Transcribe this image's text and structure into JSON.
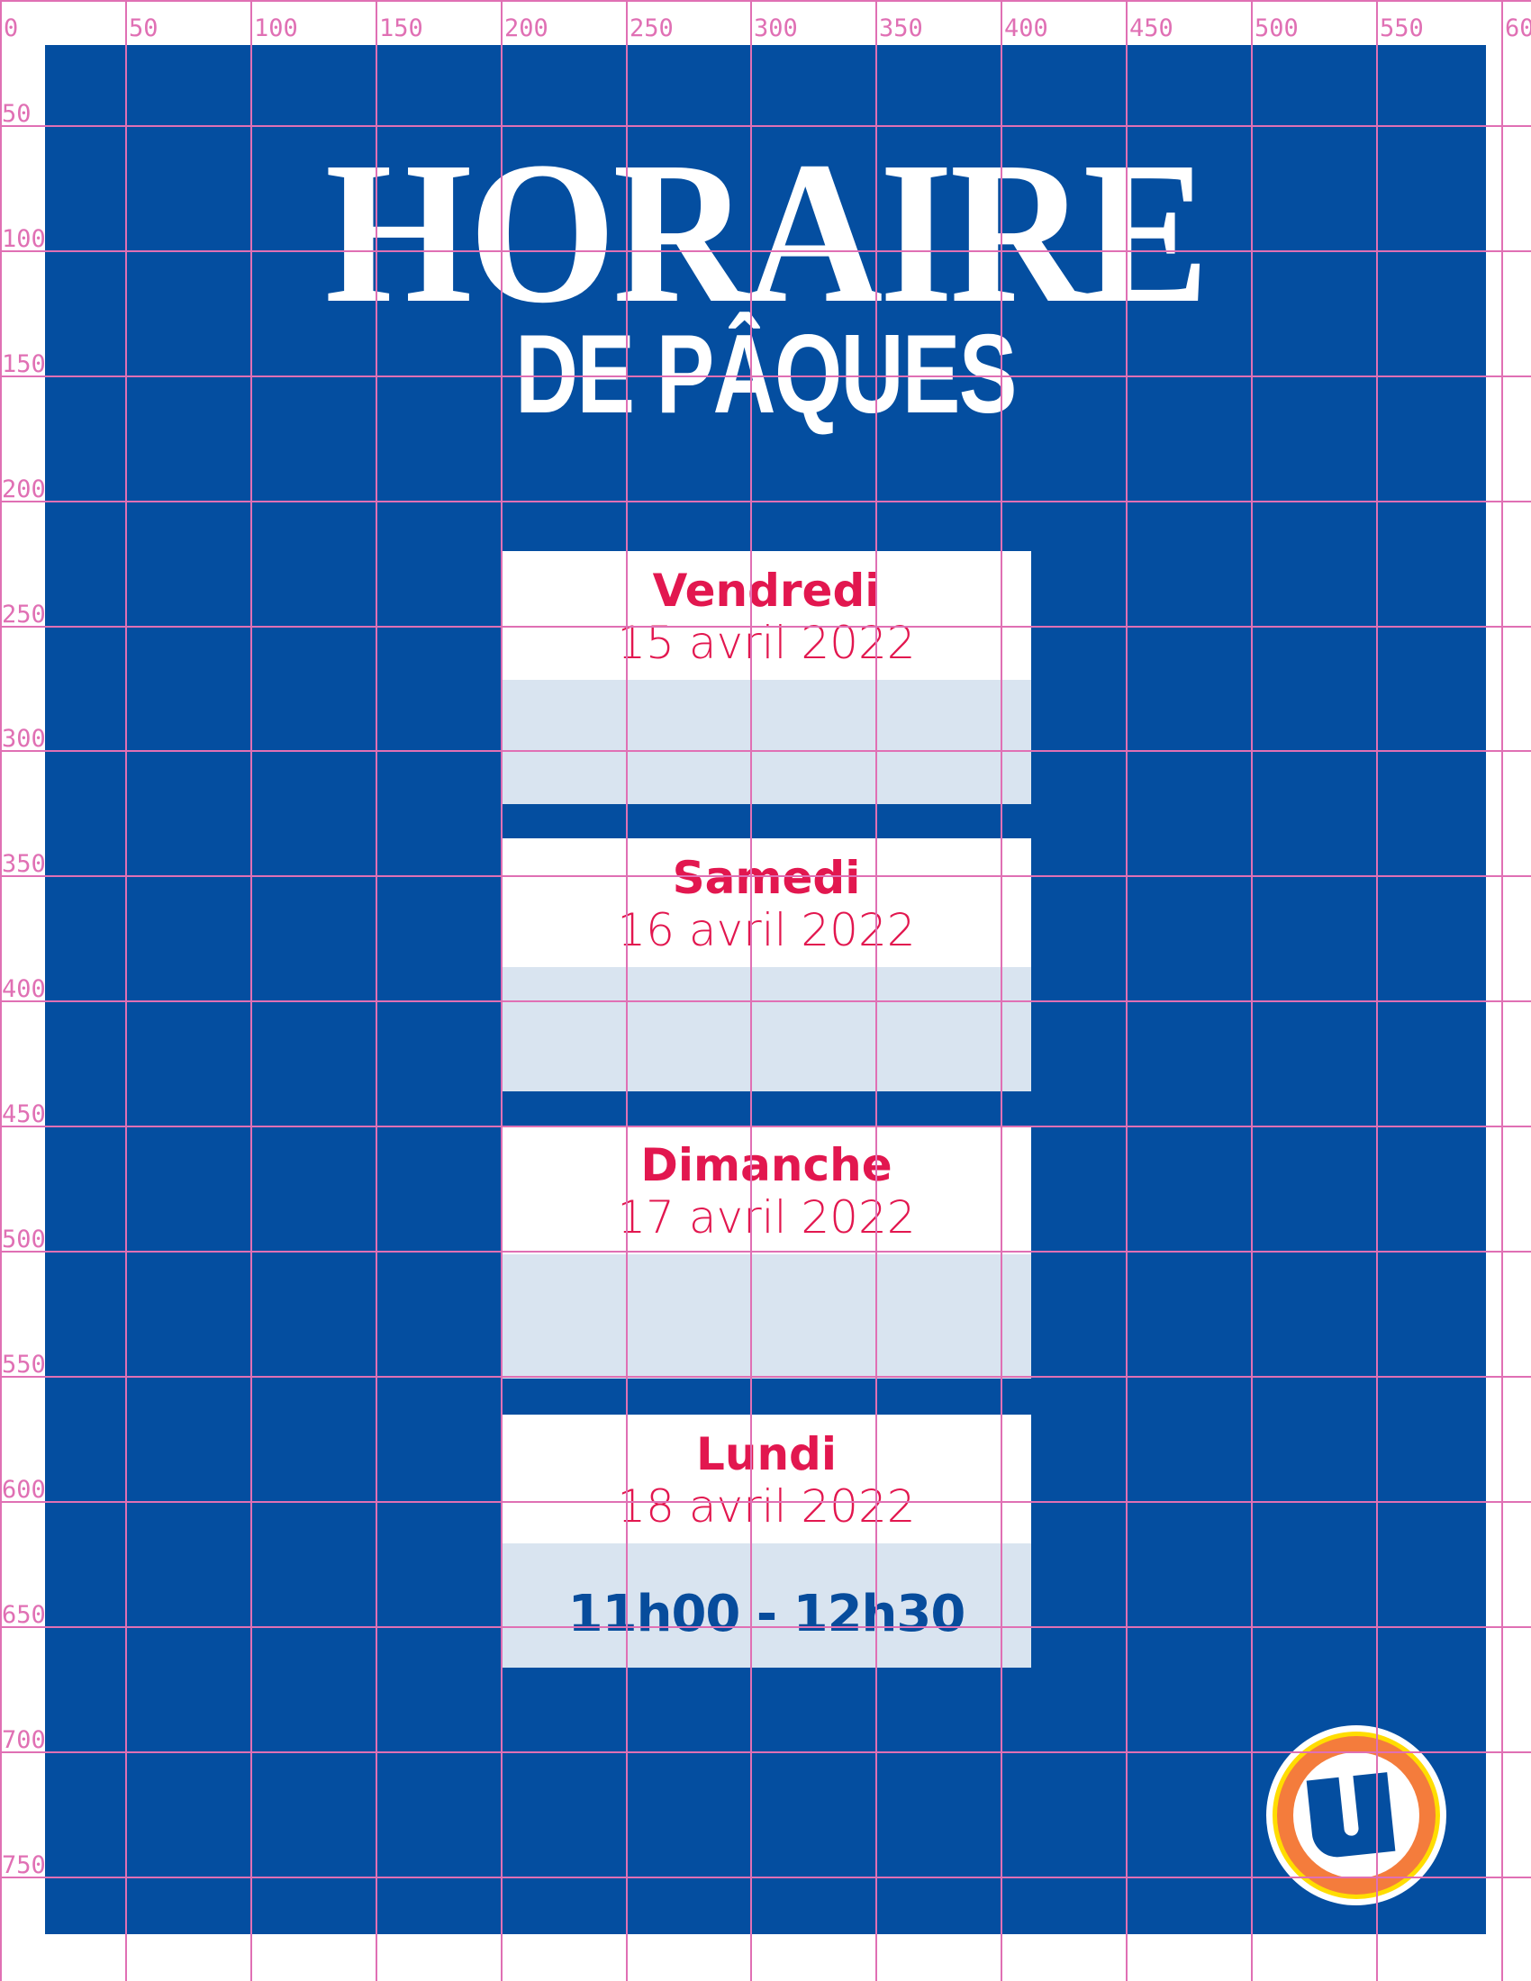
{
  "poster": {
    "title": "HORAIRE",
    "subtitle": "DE PÂQUES",
    "colors": {
      "background": "#044ea0",
      "accent": "#e2174f",
      "hours_box": "#d9e4f0",
      "grid": "#e070b4"
    }
  },
  "days": [
    {
      "day": "Vendredi",
      "date": "15 avril 2022",
      "hours": ""
    },
    {
      "day": "Samedi",
      "date": "16 avril 2022",
      "hours": ""
    },
    {
      "day": "Dimanche",
      "date": "17 avril 2022",
      "hours": ""
    },
    {
      "day": "Lundi",
      "date": "18 avril 2022",
      "hours": "11h00 - 12h30"
    }
  ],
  "logo": {
    "icon": "u-store-logo",
    "letter": "U"
  },
  "grid": {
    "x_labels": [
      "0",
      "50",
      "100",
      "150",
      "200",
      "250",
      "300",
      "350",
      "400",
      "450",
      "500",
      "550",
      "60"
    ],
    "y_labels": [
      "50",
      "100",
      "150",
      "200",
      "250",
      "300",
      "350",
      "400",
      "450",
      "500",
      "550",
      "600",
      "650",
      "700",
      "750"
    ]
  }
}
